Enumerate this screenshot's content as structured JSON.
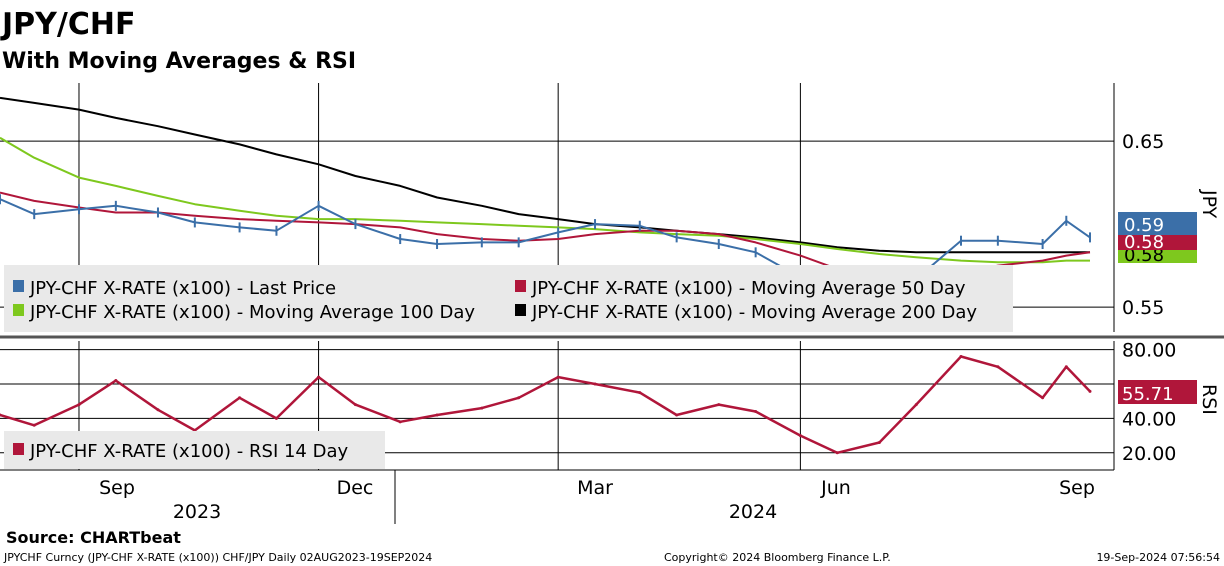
{
  "header": {
    "title": "JPY/CHF",
    "subtitle": "With Moving Averages & RSI"
  },
  "colors": {
    "last_price": "#3b6fa8",
    "ma50": "#b0163a",
    "ma100": "#7ec81e",
    "ma200": "#000000",
    "rsi": "#b0163a",
    "legend_bg": "#e9e9e9",
    "separator": "#555555"
  },
  "axes": {
    "price_axis_label": "JPY",
    "rsi_axis_label": "RSI",
    "price_ticks": [
      "0.65",
      "0.55"
    ],
    "rsi_ticks": [
      "80.00",
      "40.00",
      "20.00"
    ],
    "month_labels": [
      "Sep",
      "Dec",
      "Mar",
      "Jun",
      "Sep"
    ],
    "year_labels": [
      "2023",
      "2024"
    ]
  },
  "value_tags": {
    "last_price": "0.59",
    "ma50": "0.58",
    "ma100": "0.58",
    "rsi": "55.71"
  },
  "legend": {
    "price": [
      "JPY-CHF X-RATE (x100) - Last Price",
      "JPY-CHF X-RATE (x100) - Moving Average 50 Day",
      "JPY-CHF X-RATE (x100) - Moving Average 100 Day",
      "JPY-CHF X-RATE (x100) - Moving Average 200 Day"
    ],
    "rsi": [
      "JPY-CHF X-RATE (x100) - RSI 14 Day"
    ]
  },
  "footer": {
    "source": "Source: CHARTbeat",
    "security": "JPYCHF Curncy (JPY-CHF X-RATE (x100)) CHF/JPY  Daily 02AUG2023-19SEP2024",
    "copyright": "Copyright© 2024 Bloomberg Finance L.P.",
    "timestamp": "19-Sep-2024 07:56:54"
  },
  "chart_data": [
    {
      "type": "line",
      "title": "JPY/CHF",
      "subtitle": "With Moving Averages & RSI",
      "ylabel": "JPY",
      "ylim": [
        0.535,
        0.685
      ],
      "x": [
        "2023-08-02",
        "2023-08-15",
        "2023-09-01",
        "2023-09-15",
        "2023-10-01",
        "2023-10-15",
        "2023-11-01",
        "2023-11-15",
        "2023-12-01",
        "2023-12-15",
        "2024-01-01",
        "2024-01-15",
        "2024-02-01",
        "2024-02-15",
        "2024-03-01",
        "2024-03-15",
        "2024-04-01",
        "2024-04-15",
        "2024-05-01",
        "2024-05-15",
        "2024-06-01",
        "2024-06-15",
        "2024-07-01",
        "2024-07-15",
        "2024-08-01",
        "2024-08-15",
        "2024-09-01",
        "2024-09-10",
        "2024-09-19"
      ],
      "series": [
        {
          "name": "JPY-CHF X-RATE (x100) - Last Price",
          "values": [
            0.615,
            0.606,
            0.609,
            0.611,
            0.607,
            0.601,
            0.598,
            0.596,
            0.611,
            0.6,
            0.591,
            0.588,
            0.589,
            0.589,
            0.595,
            0.6,
            0.599,
            0.592,
            0.588,
            0.583,
            0.568,
            0.557,
            0.555,
            0.567,
            0.59,
            0.59,
            0.588,
            0.602,
            0.592
          ]
        },
        {
          "name": "JPY-CHF X-RATE (x100) - Moving Average 50 Day",
          "values": [
            0.619,
            0.614,
            0.61,
            0.607,
            0.607,
            0.605,
            0.603,
            0.602,
            0.601,
            0.6,
            0.598,
            0.594,
            0.591,
            0.59,
            0.591,
            0.594,
            0.596,
            0.596,
            0.594,
            0.589,
            0.581,
            0.573,
            0.568,
            0.566,
            0.57,
            0.575,
            0.578,
            0.581,
            0.583
          ]
        },
        {
          "name": "JPY-CHF X-RATE (x100) - Moving Average 100 Day",
          "values": [
            0.652,
            0.64,
            0.628,
            0.623,
            0.617,
            0.612,
            0.608,
            0.605,
            0.603,
            0.603,
            0.602,
            0.601,
            0.6,
            0.599,
            0.598,
            0.597,
            0.595,
            0.594,
            0.593,
            0.591,
            0.588,
            0.585,
            0.582,
            0.58,
            0.578,
            0.577,
            0.577,
            0.578,
            0.578
          ]
        },
        {
          "name": "JPY-CHF X-RATE (x100) - Moving Average 200 Day",
          "values": [
            0.676,
            0.673,
            0.669,
            0.664,
            0.659,
            0.654,
            0.648,
            0.642,
            0.636,
            0.629,
            0.623,
            0.616,
            0.611,
            0.606,
            0.603,
            0.6,
            0.598,
            0.596,
            0.594,
            0.592,
            0.589,
            0.586,
            0.584,
            0.583,
            0.583,
            0.583,
            0.583,
            0.583,
            0.583
          ]
        }
      ]
    },
    {
      "type": "line",
      "ylabel": "RSI",
      "ylim": [
        10,
        85
      ],
      "x": [
        "2023-08-02",
        "2023-08-15",
        "2023-09-01",
        "2023-09-15",
        "2023-10-01",
        "2023-10-15",
        "2023-11-01",
        "2023-11-15",
        "2023-12-01",
        "2023-12-15",
        "2024-01-01",
        "2024-01-15",
        "2024-02-01",
        "2024-02-15",
        "2024-03-01",
        "2024-03-15",
        "2024-04-01",
        "2024-04-15",
        "2024-05-01",
        "2024-05-15",
        "2024-06-01",
        "2024-06-15",
        "2024-07-01",
        "2024-07-15",
        "2024-08-01",
        "2024-08-15",
        "2024-09-01",
        "2024-09-10",
        "2024-09-19"
      ],
      "series": [
        {
          "name": "JPY-CHF X-RATE (x100) - RSI 14 Day",
          "values": [
            42,
            36,
            48,
            62,
            45,
            33,
            52,
            40,
            64,
            48,
            38,
            42,
            46,
            52,
            64,
            60,
            55,
            42,
            48,
            44,
            30,
            20,
            26,
            48,
            76,
            70,
            52,
            70,
            55.71
          ]
        }
      ]
    }
  ]
}
